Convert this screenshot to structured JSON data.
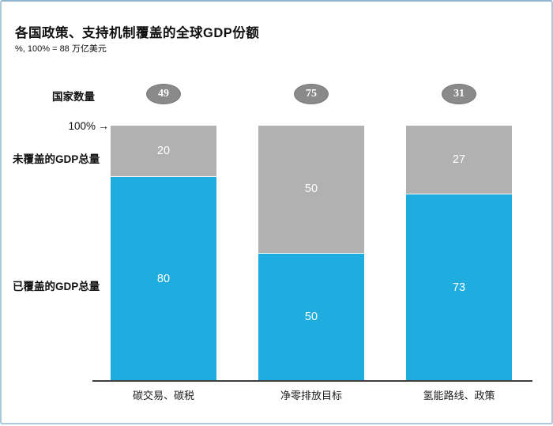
{
  "header": {
    "title": "各国政策、支持机制覆盖的全球GDP份额",
    "subtitle": "%, 100% = 88 万亿美元"
  },
  "labels": {
    "country_count": "国家数量",
    "axis_100": "100%",
    "arrow": "→"
  },
  "chart_data": {
    "type": "bar",
    "subtype": "stacked-percent-column",
    "title": "各国政策、支持机制覆盖的全球GDP份额",
    "subtitle": "%, 100% = 88 万亿美元",
    "categories": [
      "碳交易、碳税",
      "净零排放目标",
      "氢能路线、政策"
    ],
    "country_counts": [
      49,
      75,
      31
    ],
    "series": [
      {
        "name": "未覆盖的GDP总量",
        "color": "#b1b1b1",
        "values": [
          20,
          50,
          27
        ]
      },
      {
        "name": "已覆盖的GDP总量",
        "color": "#1fade0",
        "values": [
          80,
          50,
          73
        ]
      }
    ],
    "ylim": [
      0,
      100
    ],
    "axis_marker": "100%",
    "grid": false,
    "legend_position": "left-row-labels",
    "value_labels": "inside-white"
  },
  "colors": {
    "covered": "#1fade0",
    "uncovered": "#b1b1b1",
    "country_badge": "#8a8a8a",
    "axis_line": "#3f3f3f",
    "frame_border": "#aac9db"
  }
}
